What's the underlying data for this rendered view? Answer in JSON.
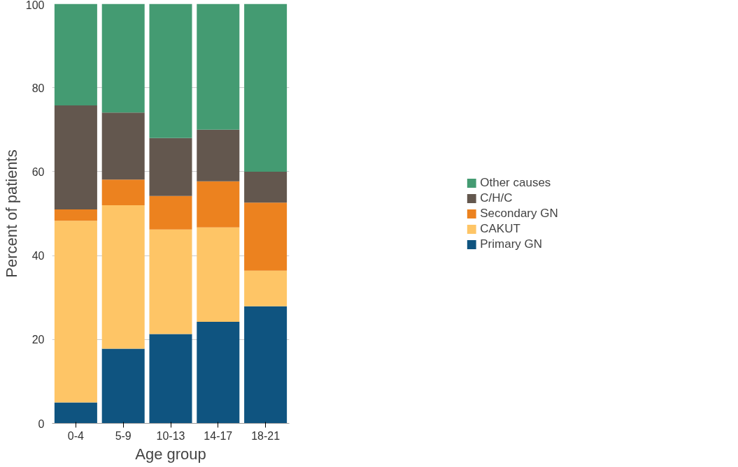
{
  "chart_data": {
    "type": "bar",
    "stacked": true,
    "xlabel": "Age group",
    "ylabel": "Percent of patients",
    "categories": [
      "0-4",
      "5-9",
      "10-13",
      "14-17",
      "18-21"
    ],
    "series": [
      {
        "name": "Primary GN",
        "color": "#0f5480",
        "values": [
          5.0,
          17.8,
          21.3,
          24.2,
          27.9
        ]
      },
      {
        "name": "CAKUT",
        "color": "#fec566",
        "values": [
          43.3,
          34.2,
          24.9,
          22.5,
          8.5
        ]
      },
      {
        "name": "Secondary GN",
        "color": "#ec821f",
        "values": [
          2.7,
          6.1,
          8.0,
          11.0,
          16.2
        ]
      },
      {
        "name": "C/H/C",
        "color": "#63574e",
        "values": [
          24.8,
          16.0,
          13.8,
          12.3,
          7.4
        ]
      },
      {
        "name": "Other causes",
        "color": "#449b72",
        "values": [
          24.2,
          25.9,
          32.0,
          30.0,
          40.0
        ]
      }
    ],
    "ylim": [
      0,
      100
    ],
    "yticks": [
      0,
      20,
      40,
      60,
      80,
      100
    ],
    "grid": "y",
    "legend": "right"
  }
}
